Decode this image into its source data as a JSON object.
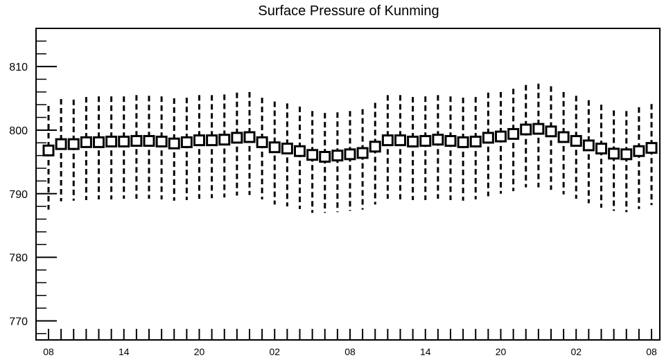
{
  "chart_data": {
    "type": "scatter",
    "title": "Surface Pressure of Kunming",
    "xlabel": "",
    "ylabel": "",
    "ylim": [
      767,
      816
    ],
    "y_ticks": [
      770,
      780,
      790,
      800,
      810
    ],
    "y_tick_labels": [
      "770",
      "780",
      "790",
      "800",
      "810"
    ],
    "x_tick_labels": [
      "08",
      "14",
      "20",
      "02",
      "08",
      "14",
      "20",
      "02",
      "08"
    ],
    "x_tick_hours": [
      0,
      6,
      12,
      18,
      24,
      30,
      36,
      42,
      48
    ],
    "grid": false,
    "legend": "none",
    "series": [
      {
        "marker": "open-square",
        "error_bars": "dashed",
        "x": [
          0,
          1,
          2,
          3,
          4,
          5,
          6,
          7,
          8,
          9,
          10,
          11,
          12,
          13,
          14,
          15,
          16,
          17,
          18,
          19,
          20,
          21,
          22,
          23,
          24,
          25,
          26,
          27,
          28,
          29,
          30,
          31,
          32,
          33,
          34,
          35,
          36,
          37,
          38,
          39,
          40,
          41,
          42,
          43,
          44,
          45,
          46,
          47,
          48
        ],
        "y": [
          796.8,
          797.8,
          797.8,
          798.1,
          798.1,
          798.2,
          798.2,
          798.3,
          798.3,
          798.2,
          797.9,
          798.1,
          798.4,
          798.4,
          798.5,
          798.8,
          798.9,
          798.1,
          797.3,
          797.1,
          796.7,
          796.1,
          795.8,
          796.0,
          796.2,
          796.4,
          797.4,
          798.4,
          798.4,
          798.2,
          798.3,
          798.5,
          798.3,
          798.1,
          798.2,
          798.8,
          799.0,
          799.4,
          800.1,
          800.2,
          799.8,
          798.9,
          798.3,
          797.6,
          797.1,
          796.3,
          796.2,
          796.7,
          797.2
        ],
        "err_low": [
          787.5,
          788.8,
          788.9,
          789.0,
          789.1,
          789.1,
          789.2,
          789.2,
          789.2,
          789.1,
          788.9,
          789.0,
          789.2,
          789.3,
          789.4,
          789.7,
          789.8,
          789.1,
          788.3,
          788.0,
          787.6,
          787.0,
          787.0,
          787.1,
          787.3,
          787.5,
          788.3,
          789.2,
          789.1,
          789.0,
          789.0,
          789.2,
          789.0,
          788.9,
          789.1,
          789.6,
          790.0,
          790.4,
          791.0,
          791.0,
          790.6,
          789.9,
          789.2,
          788.5,
          787.8,
          787.3,
          787.1,
          787.6,
          788.2
        ],
        "err_high": [
          803.8,
          804.9,
          804.8,
          805.2,
          805.3,
          805.3,
          805.3,
          805.5,
          805.4,
          805.3,
          805.0,
          805.1,
          805.5,
          805.5,
          805.6,
          805.9,
          806.0,
          805.1,
          804.5,
          804.2,
          803.7,
          803.0,
          802.7,
          802.8,
          803.0,
          803.3,
          804.3,
          805.5,
          805.5,
          805.2,
          805.3,
          805.5,
          805.3,
          805.1,
          805.2,
          805.9,
          806.0,
          806.5,
          807.1,
          807.3,
          806.9,
          806.0,
          805.4,
          804.7,
          804.0,
          803.1,
          803.0,
          803.6,
          804.1
        ]
      }
    ]
  }
}
